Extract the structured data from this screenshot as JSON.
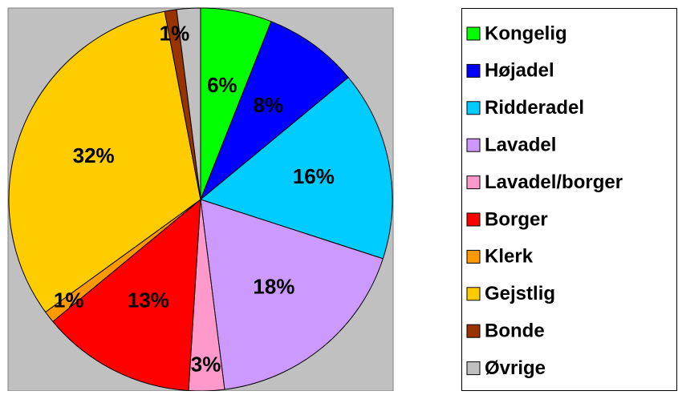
{
  "chart_data": {
    "type": "pie",
    "categories": [
      "Kongelig",
      "Højadel",
      "Ridderadel",
      "Lavadel",
      "Lavadel/borger",
      "Borger",
      "Klerk",
      "Gejstlig",
      "Bonde",
      "Øvrige"
    ],
    "values": [
      6,
      8,
      16,
      18,
      3,
      13,
      1,
      32,
      1,
      2
    ],
    "value_labels": [
      "6%",
      "8%",
      "16%",
      "18%",
      "3%",
      "13%",
      "1%",
      "32%",
      "1%",
      null
    ],
    "colors": [
      "#00ff00",
      "#0000ff",
      "#00ccff",
      "#cc99ff",
      "#ff99cc",
      "#ff0000",
      "#ff9900",
      "#ffcc00",
      "#993300",
      "#c0c0c0"
    ],
    "legend": "right"
  }
}
